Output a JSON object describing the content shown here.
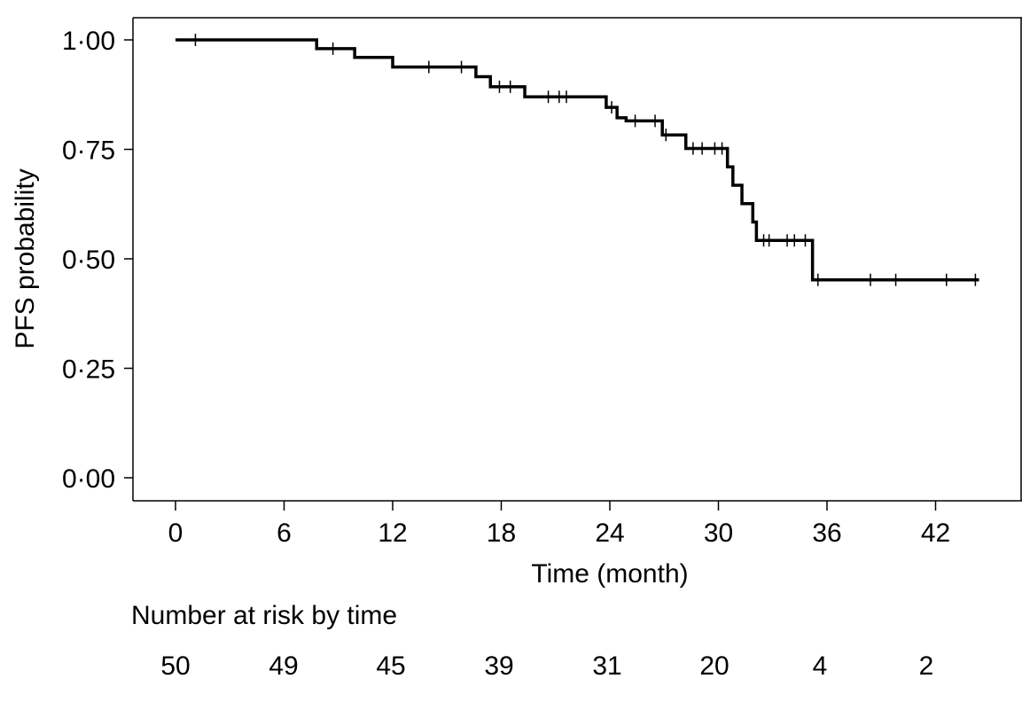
{
  "chart_data": {
    "type": "line",
    "title": "",
    "xlabel": "Time (month)",
    "ylabel": "PFS probability",
    "xlim": [
      -2.5,
      46.5
    ],
    "ylim": [
      -0.05,
      1.05
    ],
    "x_ticks": [
      0,
      6,
      12,
      18,
      24,
      30,
      36,
      42
    ],
    "x_tick_labels": [
      "0",
      "6",
      "12",
      "18",
      "24",
      "30",
      "36",
      "42"
    ],
    "y_ticks": [
      0,
      0.25,
      0.5,
      0.75,
      1.0
    ],
    "y_tick_labels": [
      "0·00",
      "0·25",
      "0·50",
      "0·75",
      "1·00"
    ],
    "grid": false,
    "series": [
      {
        "step_x": [
          0,
          7.8,
          9.9,
          12,
          16.6,
          17.4,
          19.3,
          23.8,
          24.4,
          24.9,
          26.9,
          28.2,
          30.5,
          30.8,
          31.3,
          31.9,
          32.1,
          35.2,
          44.4
        ],
        "step_y": [
          1.0,
          0.98,
          0.96,
          0.938,
          0.916,
          0.893,
          0.87,
          0.846,
          0.822,
          0.815,
          0.783,
          0.752,
          0.71,
          0.668,
          0.626,
          0.584,
          0.542,
          0.452,
          0.452
        ],
        "censor_x": [
          1.1,
          8.7,
          14.0,
          15.8,
          17.9,
          18.5,
          20.6,
          21.2,
          21.6,
          24.1,
          25.4,
          26.5,
          27.1,
          28.6,
          29.1,
          29.8,
          30.2,
          32.5,
          32.8,
          33.8,
          34.2,
          34.8,
          35.5,
          38.4,
          39.8,
          42.6,
          44.2
        ],
        "censor_y": [
          1.0,
          0.98,
          0.938,
          0.938,
          0.893,
          0.893,
          0.87,
          0.87,
          0.87,
          0.846,
          0.815,
          0.815,
          0.783,
          0.752,
          0.752,
          0.752,
          0.752,
          0.542,
          0.542,
          0.542,
          0.542,
          0.542,
          0.452,
          0.452,
          0.452,
          0.452,
          0.452
        ]
      }
    ]
  },
  "risk_table": {
    "title": "Number at risk by time",
    "counts": [
      "50",
      "49",
      "45",
      "39",
      "31",
      "20",
      "4",
      "2"
    ]
  }
}
